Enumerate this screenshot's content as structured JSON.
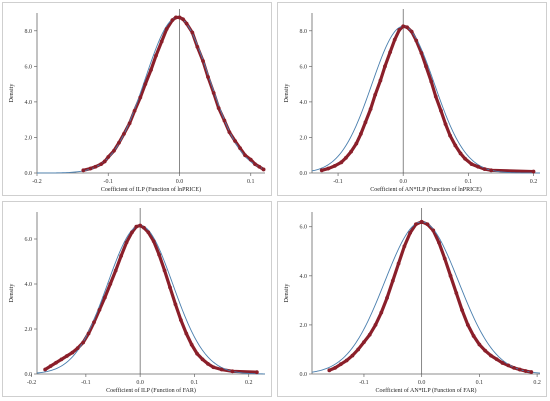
{
  "colors": {
    "points": "#8b1f2a",
    "curve": "#4a7fae",
    "axis": "#666666",
    "refline": "#555555"
  },
  "chart_data": [
    {
      "type": "scatter",
      "title": "",
      "xlabel": "Coefficient of ILP (Function of lnPRICE)",
      "ylabel": "Density",
      "xlim": [
        -0.2,
        0.12
      ],
      "ylim": [
        0,
        9
      ],
      "xticks": [
        -0.2,
        -0.1,
        0,
        0.1
      ],
      "xtick_labels": [
        "-0.2",
        "-0.1",
        "0.0",
        "0.1"
      ],
      "yticks": [
        0,
        2,
        4,
        6,
        8
      ],
      "ytick_labels": [
        "0.0",
        "2.0",
        "4.0",
        "6.0",
        "8.0"
      ],
      "grid": false,
      "vline": 0,
      "series": [
        {
          "kind": "points",
          "x": [
            -0.135,
            -0.125,
            -0.118,
            -0.11,
            -0.105,
            -0.1,
            -0.092,
            -0.085,
            -0.078,
            -0.07,
            -0.063,
            -0.055,
            -0.048,
            -0.04,
            -0.033,
            -0.025,
            -0.018,
            -0.01,
            -0.005,
            0,
            0.005,
            0.01,
            0.018,
            0.025,
            0.033,
            0.04,
            0.048,
            0.055,
            0.063,
            0.07,
            0.078,
            0.085,
            0.092,
            0.1,
            0.106,
            0.112,
            0.118
          ],
          "y": [
            0.15,
            0.25,
            0.35,
            0.5,
            0.65,
            0.9,
            1.25,
            1.7,
            2.2,
            2.8,
            3.5,
            4.25,
            5.0,
            5.8,
            6.6,
            7.4,
            8.1,
            8.6,
            8.75,
            8.75,
            8.65,
            8.4,
            7.9,
            7.1,
            6.3,
            5.4,
            4.5,
            3.65,
            2.95,
            2.3,
            1.8,
            1.4,
            1.0,
            0.75,
            0.5,
            0.35,
            0.2
          ]
        },
        {
          "kind": "normal-curve",
          "mean": -0.003,
          "sd": 0.045
        }
      ]
    },
    {
      "type": "scatter",
      "title": "",
      "xlabel": "Coefficient of AN*ILP (Function of lnPRICE)",
      "ylabel": "Density",
      "xlim": [
        -0.14,
        0.21
      ],
      "ylim": [
        0,
        9
      ],
      "xticks": [
        -0.1,
        0,
        0.1,
        0.2
      ],
      "xtick_labels": [
        "-0.1",
        "0.0",
        "0.1",
        "0.2"
      ],
      "yticks": [
        0,
        2,
        4,
        6,
        8
      ],
      "ytick_labels": [
        "0.0",
        "2.0",
        "4.0",
        "6.0",
        "8.0"
      ],
      "grid": false,
      "vline": 0,
      "series": [
        {
          "kind": "points",
          "x": [
            -0.125,
            -0.115,
            -0.105,
            -0.095,
            -0.088,
            -0.08,
            -0.072,
            -0.065,
            -0.058,
            -0.05,
            -0.043,
            -0.035,
            -0.028,
            -0.02,
            -0.013,
            -0.006,
            0,
            0.006,
            0.013,
            0.02,
            0.028,
            0.035,
            0.043,
            0.05,
            0.058,
            0.065,
            0.072,
            0.08,
            0.088,
            0.095,
            0.105,
            0.115,
            0.125,
            0.135,
            0.2
          ],
          "y": [
            0.15,
            0.25,
            0.4,
            0.6,
            0.85,
            1.2,
            1.65,
            2.2,
            2.85,
            3.6,
            4.4,
            5.2,
            6.0,
            6.8,
            7.5,
            8.05,
            8.25,
            8.2,
            7.95,
            7.45,
            6.75,
            6.0,
            5.15,
            4.3,
            3.5,
            2.75,
            2.1,
            1.55,
            1.1,
            0.8,
            0.5,
            0.35,
            0.22,
            0.15,
            0.08
          ]
        },
        {
          "kind": "normal-curve",
          "mean": 0.0,
          "sd": 0.048
        }
      ]
    },
    {
      "type": "scatter",
      "title": "",
      "xlabel": "Coefficient of ILP (Function of FAR)",
      "ylabel": "Density",
      "xlim": [
        -0.19,
        0.23
      ],
      "ylim": [
        0,
        7.2
      ],
      "xticks": [
        -0.2,
        -0.1,
        0,
        0.1,
        0.2
      ],
      "xtick_labels": [
        "-0.2",
        "-0.1",
        "0.0",
        "0.1",
        "0.2"
      ],
      "yticks": [
        0,
        2,
        4,
        6
      ],
      "ytick_labels": [
        "0.0",
        "2.0",
        "4.0",
        "6.0"
      ],
      "grid": false,
      "vline": 0,
      "series": [
        {
          "kind": "points",
          "x": [
            -0.175,
            -0.165,
            -0.155,
            -0.145,
            -0.135,
            -0.125,
            -0.115,
            -0.105,
            -0.095,
            -0.085,
            -0.075,
            -0.065,
            -0.055,
            -0.045,
            -0.035,
            -0.025,
            -0.015,
            -0.007,
            0,
            0.007,
            0.015,
            0.025,
            0.035,
            0.045,
            0.055,
            0.065,
            0.075,
            0.085,
            0.095,
            0.105,
            0.115,
            0.125,
            0.135,
            0.15,
            0.17,
            0.215
          ],
          "y": [
            0.2,
            0.35,
            0.5,
            0.65,
            0.8,
            0.95,
            1.15,
            1.4,
            1.8,
            2.3,
            2.85,
            3.4,
            4.0,
            4.6,
            5.25,
            5.85,
            6.3,
            6.55,
            6.6,
            6.5,
            6.3,
            5.9,
            5.3,
            4.6,
            3.85,
            3.1,
            2.4,
            1.8,
            1.3,
            0.9,
            0.65,
            0.45,
            0.3,
            0.2,
            0.12,
            0.08
          ]
        },
        {
          "kind": "normal-curve",
          "mean": 0.0,
          "sd": 0.06
        }
      ]
    },
    {
      "type": "scatter",
      "title": "",
      "xlabel": "Coefficient of AN*ILP (Function of FAR)",
      "ylabel": "Density",
      "xlim": [
        -0.19,
        0.205
      ],
      "ylim": [
        0,
        6.6
      ],
      "xticks": [
        -0.1,
        0,
        0.1,
        0.2
      ],
      "xtick_labels": [
        "-0.1",
        "0.0",
        "0.1",
        "0.2"
      ],
      "yticks": [
        0,
        2,
        4,
        6
      ],
      "ytick_labels": [
        "0.0",
        "2.0",
        "4.0",
        "6.0"
      ],
      "grid": false,
      "vline": 0,
      "series": [
        {
          "kind": "points",
          "x": [
            -0.16,
            -0.15,
            -0.14,
            -0.13,
            -0.12,
            -0.11,
            -0.1,
            -0.09,
            -0.08,
            -0.07,
            -0.06,
            -0.05,
            -0.04,
            -0.03,
            -0.02,
            -0.01,
            0,
            0.01,
            0.02,
            0.03,
            0.04,
            0.05,
            0.06,
            0.07,
            0.08,
            0.09,
            0.1,
            0.11,
            0.12,
            0.13,
            0.14,
            0.15,
            0.16,
            0.17,
            0.18,
            0.19
          ],
          "y": [
            0.15,
            0.25,
            0.4,
            0.55,
            0.75,
            1.0,
            1.3,
            1.6,
            2.0,
            2.5,
            3.1,
            3.8,
            4.5,
            5.2,
            5.75,
            6.1,
            6.2,
            6.1,
            5.85,
            5.35,
            4.7,
            4.0,
            3.3,
            2.6,
            2.0,
            1.55,
            1.2,
            0.95,
            0.75,
            0.6,
            0.45,
            0.35,
            0.25,
            0.18,
            0.12,
            0.08
          ]
        },
        {
          "kind": "normal-curve",
          "mean": 0.0,
          "sd": 0.064
        }
      ]
    }
  ]
}
